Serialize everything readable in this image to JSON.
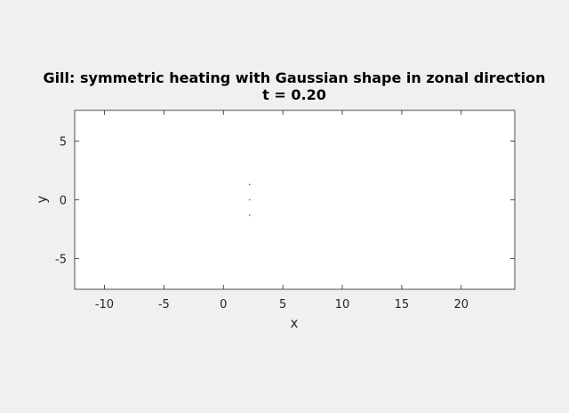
{
  "chart_data": {
    "type": "scatter",
    "title": "Gill: symmetric heating with Gaussian shape in zonal direction",
    "subtitle": "t = 0.20",
    "xlabel": "x",
    "ylabel": "y",
    "xlim": [
      -12.5,
      24.5
    ],
    "ylim": [
      -7.6,
      7.6
    ],
    "xticks": [
      -10,
      -5,
      0,
      5,
      10,
      15,
      20
    ],
    "xtick_labels": [
      "-10",
      "-5",
      "0",
      "5",
      "10",
      "15",
      "20"
    ],
    "yticks": [
      5,
      0,
      -5
    ],
    "ytick_labels": [
      "5",
      "0",
      "-5"
    ],
    "grid": false,
    "box": true,
    "series": [
      {
        "marker": "dot",
        "color": "#555555",
        "points": [
          {
            "x": 2.2,
            "y": 1.3
          },
          {
            "x": 2.2,
            "y": 0.0
          },
          {
            "x": 2.2,
            "y": -1.3
          }
        ]
      }
    ]
  }
}
